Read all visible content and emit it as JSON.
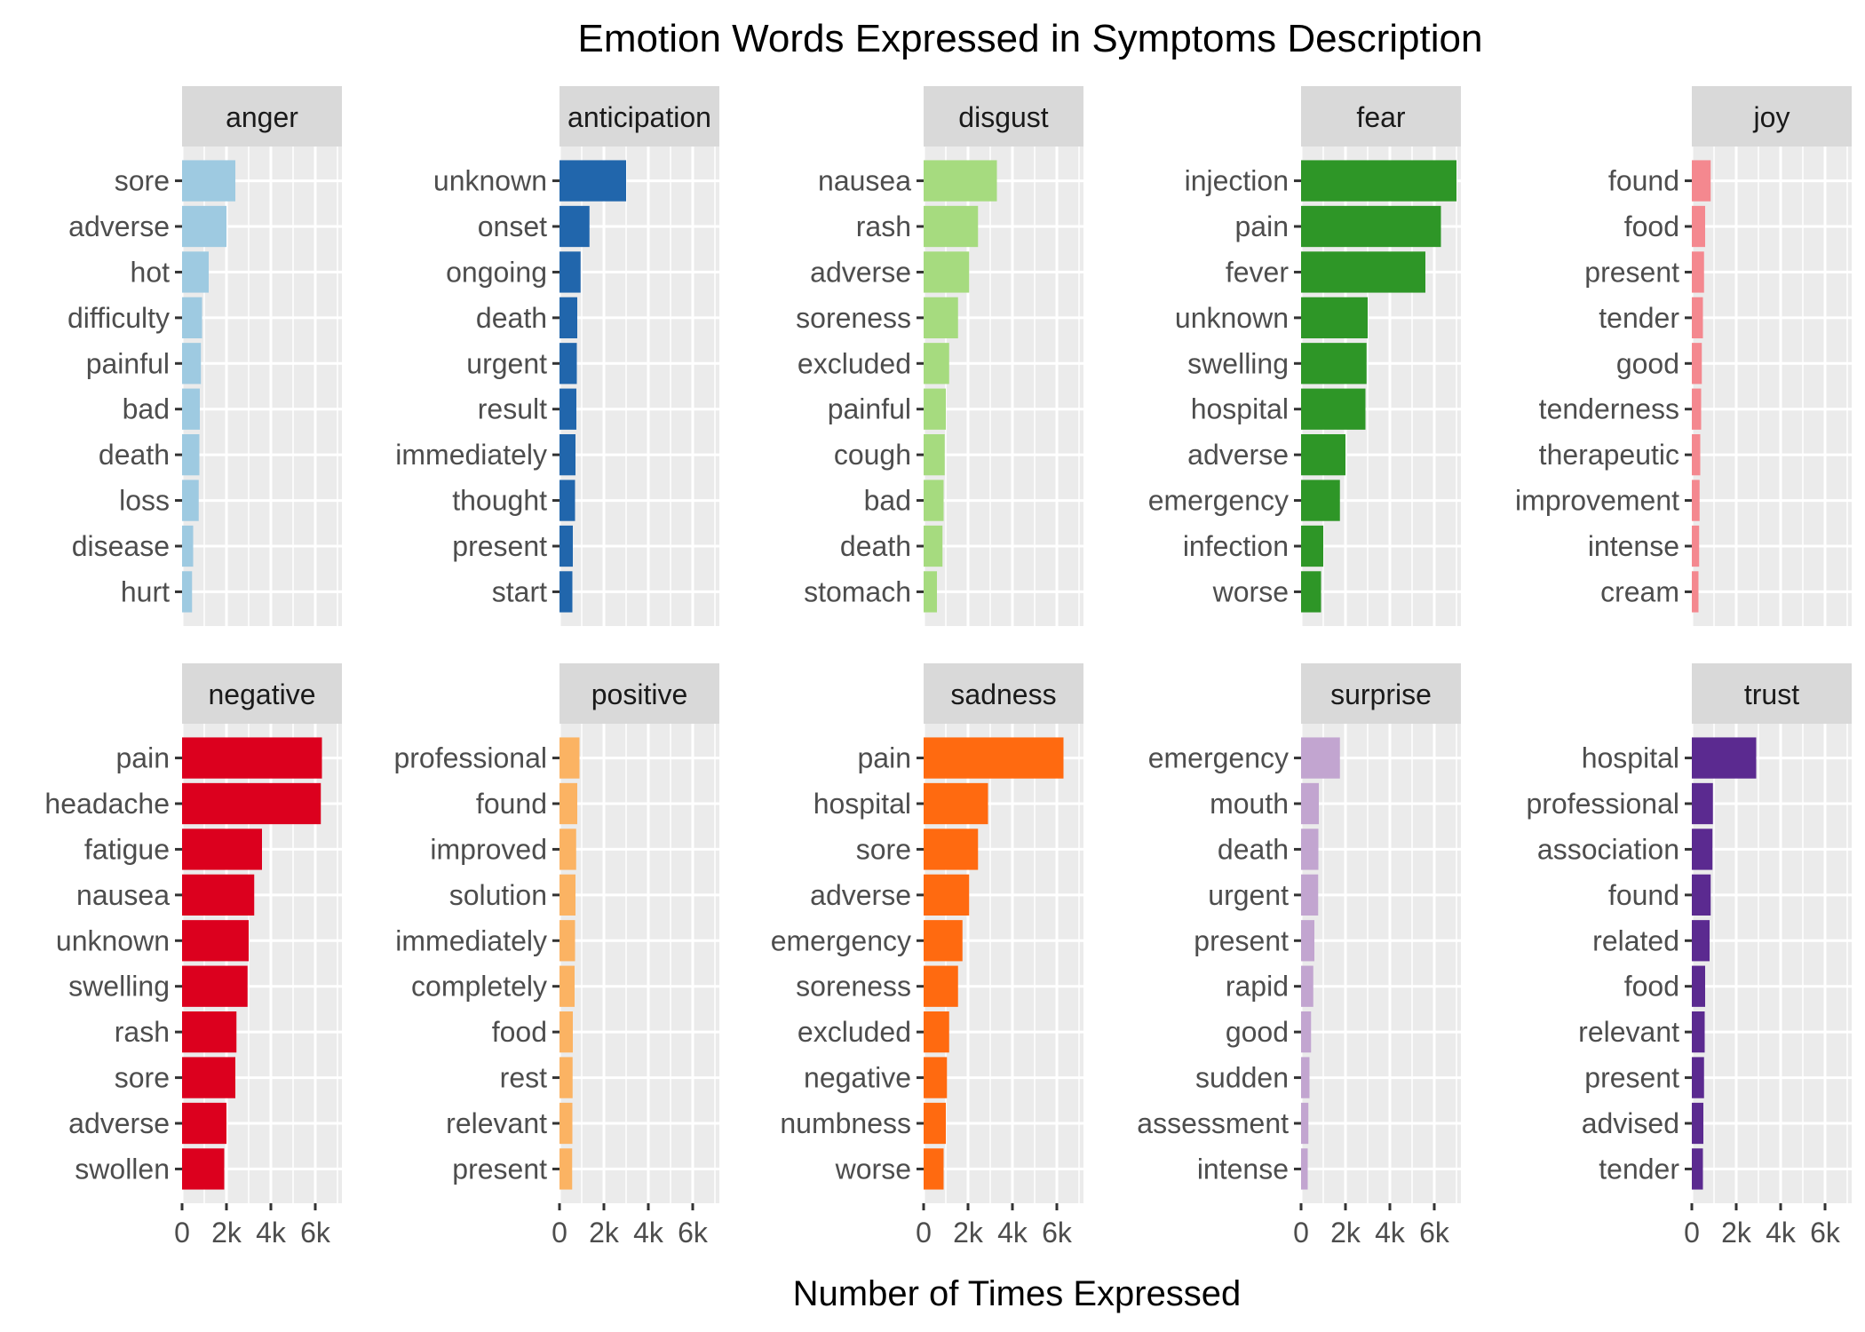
{
  "chart_data": {
    "type": "bar",
    "title": "Emotion Words Expressed in Symptoms Description",
    "xlabel": "Number of Times Expressed",
    "ylabel": "",
    "xlim": [
      0,
      7200
    ],
    "x_ticks": [
      0,
      2000,
      4000,
      6000
    ],
    "x_tick_labels": [
      "0",
      "2k",
      "4k",
      "6k"
    ],
    "grid": true,
    "facets": [
      {
        "name": "anger",
        "color": "#9ECAE1",
        "categories": [
          "sore",
          "adverse",
          "hot",
          "difficulty",
          "painful",
          "bad",
          "death",
          "loss",
          "disease",
          "hurt"
        ],
        "values": [
          2400,
          2000,
          1200,
          900,
          850,
          800,
          780,
          750,
          500,
          450
        ]
      },
      {
        "name": "anticipation",
        "color": "#2166AC",
        "categories": [
          "unknown",
          "onset",
          "ongoing",
          "death",
          "urgent",
          "result",
          "immediately",
          "thought",
          "present",
          "start"
        ],
        "values": [
          3000,
          1350,
          950,
          800,
          780,
          760,
          720,
          700,
          600,
          580
        ]
      },
      {
        "name": "disgust",
        "color": "#A6DB7F",
        "categories": [
          "nausea",
          "rash",
          "adverse",
          "soreness",
          "excluded",
          "painful",
          "cough",
          "bad",
          "death",
          "stomach"
        ],
        "values": [
          3300,
          2450,
          2050,
          1550,
          1150,
          1000,
          950,
          900,
          850,
          600
        ]
      },
      {
        "name": "fear",
        "color": "#2E9627",
        "categories": [
          "injection",
          "pain",
          "fever",
          "unknown",
          "swelling",
          "hospital",
          "adverse",
          "emergency",
          "infection",
          "worse"
        ],
        "values": [
          7000,
          6300,
          5600,
          3000,
          2950,
          2900,
          2000,
          1750,
          1000,
          900
        ]
      },
      {
        "name": "joy",
        "color": "#F4888F",
        "categories": [
          "found",
          "food",
          "present",
          "tender",
          "good",
          "tenderness",
          "therapeutic",
          "improvement",
          "intense",
          "cream"
        ],
        "values": [
          850,
          600,
          550,
          500,
          450,
          420,
          380,
          350,
          330,
          300
        ]
      },
      {
        "name": "negative",
        "color": "#DC001E",
        "categories": [
          "pain",
          "headache",
          "fatigue",
          "nausea",
          "unknown",
          "swelling",
          "rash",
          "sore",
          "adverse",
          "swollen"
        ],
        "values": [
          6300,
          6250,
          3600,
          3250,
          3000,
          2950,
          2450,
          2400,
          2000,
          1900
        ]
      },
      {
        "name": "positive",
        "color": "#FBB363",
        "categories": [
          "professional",
          "found",
          "improved",
          "solution",
          "immediately",
          "completely",
          "food",
          "rest",
          "relevant",
          "present"
        ],
        "values": [
          900,
          800,
          750,
          720,
          700,
          680,
          600,
          590,
          580,
          570
        ]
      },
      {
        "name": "sadness",
        "color": "#FF6A10",
        "categories": [
          "pain",
          "hospital",
          "sore",
          "adverse",
          "emergency",
          "soreness",
          "excluded",
          "negative",
          "numbness",
          "worse"
        ],
        "values": [
          6300,
          2900,
          2450,
          2050,
          1750,
          1550,
          1150,
          1050,
          1000,
          900
        ]
      },
      {
        "name": "surprise",
        "color": "#C2A5D0",
        "categories": [
          "emergency",
          "mouth",
          "death",
          "urgent",
          "present",
          "rapid",
          "good",
          "sudden",
          "assessment",
          "intense"
        ],
        "values": [
          1750,
          800,
          780,
          770,
          600,
          550,
          450,
          380,
          330,
          300
        ]
      },
      {
        "name": "trust",
        "color": "#5B2A90",
        "categories": [
          "hospital",
          "professional",
          "association",
          "found",
          "related",
          "food",
          "relevant",
          "present",
          "advised",
          "tender"
        ],
        "values": [
          2900,
          950,
          930,
          850,
          800,
          600,
          580,
          550,
          520,
          500
        ]
      }
    ]
  }
}
